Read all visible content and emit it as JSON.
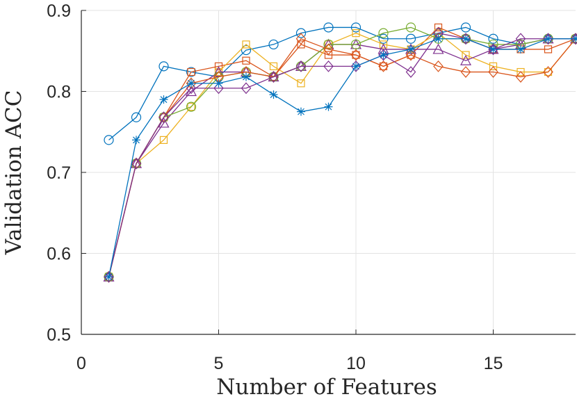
{
  "chart_data": {
    "type": "line",
    "xlabel": "Number of Features",
    "ylabel": "Validation ACC",
    "xlim": [
      0,
      18
    ],
    "ylim": [
      0.5,
      0.9
    ],
    "xticks": [
      0,
      5,
      10,
      15
    ],
    "yticks": [
      0.5,
      0.6,
      0.7,
      0.8,
      0.9
    ],
    "grid": true,
    "x": [
      1,
      2,
      3,
      4,
      5,
      6,
      7,
      8,
      9,
      10,
      11,
      12,
      13,
      14,
      15,
      16,
      17,
      18
    ],
    "series": [
      {
        "color": "#0072BD",
        "marker": "circle",
        "values": [
          0.74,
          0.768,
          0.831,
          0.824,
          0.818,
          0.851,
          0.858,
          0.872,
          0.879,
          0.879,
          0.865,
          0.865,
          0.872,
          0.879,
          0.865,
          0.858,
          0.865,
          0.865
        ]
      },
      {
        "color": "#D95319",
        "marker": "square",
        "values": [
          0.571,
          0.711,
          0.768,
          0.824,
          0.831,
          0.838,
          0.818,
          0.858,
          0.845,
          0.845,
          0.831,
          0.845,
          0.879,
          0.865,
          0.852,
          0.852,
          0.852,
          0.865
        ]
      },
      {
        "color": "#EDB120",
        "marker": "square",
        "values": [
          0.571,
          0.711,
          0.74,
          0.781,
          0.824,
          0.858,
          0.831,
          0.81,
          0.858,
          0.872,
          0.858,
          0.852,
          0.872,
          0.845,
          0.831,
          0.824,
          0.824,
          0.865
        ]
      },
      {
        "color": "#7E2F8E",
        "marker": "triangle",
        "values": [
          0.571,
          0.711,
          0.761,
          0.8,
          0.824,
          0.824,
          0.818,
          0.831,
          0.858,
          0.858,
          0.852,
          0.852,
          0.852,
          0.838,
          0.852,
          0.858,
          0.865,
          0.865
        ]
      },
      {
        "color": "#77AC30",
        "marker": "circle",
        "values": [
          0.571,
          0.711,
          0.768,
          0.781,
          0.818,
          0.824,
          0.818,
          0.831,
          0.858,
          0.858,
          0.872,
          0.879,
          0.865,
          0.865,
          0.858,
          0.858,
          0.865,
          0.865
        ]
      },
      {
        "color": "#D95319",
        "marker": "diamond",
        "values": [
          0.571,
          0.711,
          0.768,
          0.81,
          0.818,
          0.824,
          0.818,
          0.865,
          0.852,
          0.845,
          0.831,
          0.845,
          0.831,
          0.824,
          0.824,
          0.818,
          0.824,
          0.865
        ]
      },
      {
        "color": "#7E2F8E",
        "marker": "diamond",
        "values": [
          0.571,
          0.711,
          0.768,
          0.804,
          0.804,
          0.804,
          0.818,
          0.831,
          0.831,
          0.831,
          0.845,
          0.824,
          0.872,
          0.865,
          0.852,
          0.865,
          0.865,
          0.865
        ]
      },
      {
        "color": "#0072BD",
        "marker": "asterisk",
        "values": [
          0.571,
          0.74,
          0.79,
          0.81,
          0.81,
          0.818,
          0.796,
          0.775,
          0.781,
          0.831,
          0.845,
          0.852,
          0.865,
          0.865,
          0.852,
          0.852,
          0.865,
          0.865
        ]
      }
    ]
  }
}
